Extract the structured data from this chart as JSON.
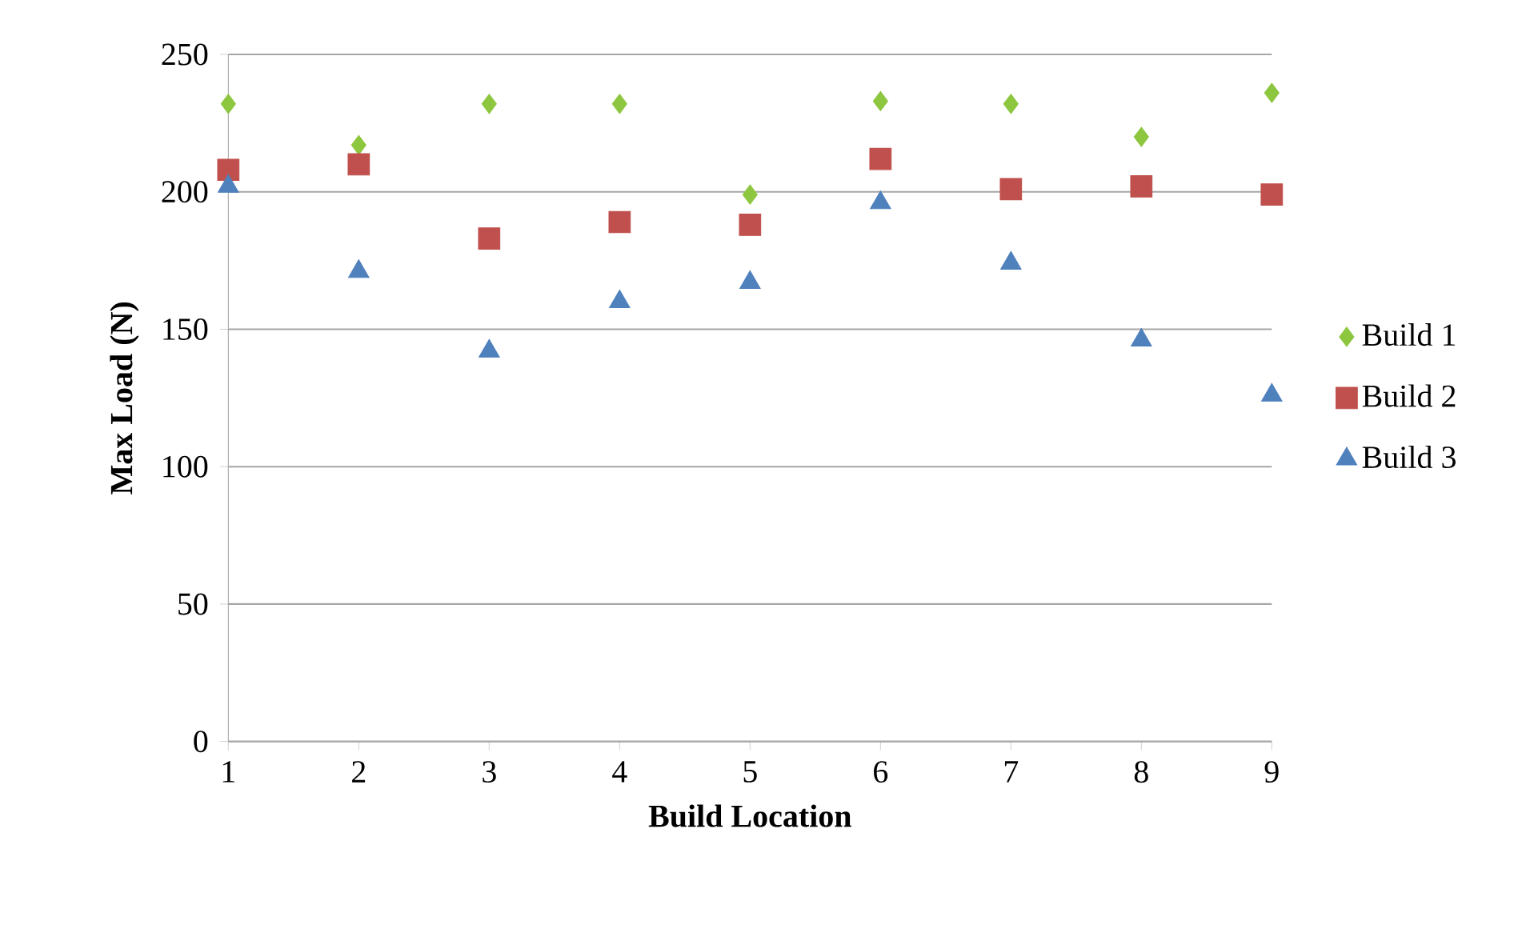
{
  "chart_data": {
    "type": "scatter",
    "xlabel": "Build Location",
    "ylabel": "Max Load (N)",
    "x": [
      1,
      2,
      3,
      4,
      5,
      6,
      7,
      8,
      9
    ],
    "series": [
      {
        "name": "Build 1",
        "color": "#8dc63f",
        "marker": "diamond",
        "values": [
          232,
          217,
          232,
          232,
          199,
          233,
          232,
          220,
          236
        ]
      },
      {
        "name": "Build 2",
        "color": "#c0504d",
        "marker": "square",
        "values": [
          208,
          210,
          183,
          189,
          188,
          212,
          201,
          202,
          199
        ]
      },
      {
        "name": "Build 3",
        "color": "#4f81bd",
        "marker": "triangle",
        "values": [
          202,
          171,
          142,
          160,
          167,
          196,
          174,
          146,
          126
        ]
      }
    ],
    "xlim": [
      1,
      9
    ],
    "xticks": [
      1,
      2,
      3,
      4,
      5,
      6,
      7,
      8,
      9
    ],
    "ylim": [
      0,
      250
    ],
    "yticks": [
      0,
      50,
      100,
      150,
      200,
      250
    ],
    "grid": "y",
    "legend": "right"
  }
}
